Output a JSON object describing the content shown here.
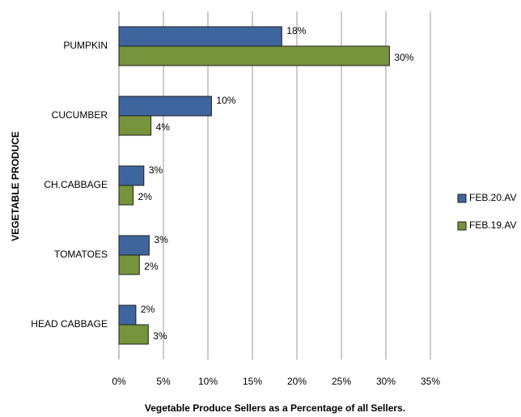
{
  "chart_data": {
    "type": "hbar",
    "xlabel": "Vegetable Produce Sellers as a Percentage of all Sellers.",
    "ylabel": "VEGETABLE PRODUCE",
    "categories": [
      "PUMPKIN",
      "CUCUMBER",
      "CH.CABBAGE",
      "TOMATOES",
      "HEAD CABBAGE"
    ],
    "series": [
      {
        "name": "FEB.20.AV",
        "color": "#3e659e",
        "values": [
          18.3,
          10.4,
          2.8,
          3.4,
          1.9
        ],
        "value_labels": [
          "18%",
          "10%",
          "3%",
          "3%",
          "2%"
        ]
      },
      {
        "name": "FEB.19.AV",
        "color": "#77933c",
        "values": [
          30.4,
          3.6,
          1.6,
          2.3,
          3.3
        ],
        "value_labels": [
          "30%",
          "4%",
          "2%",
          "2%",
          "3%"
        ]
      }
    ],
    "xlim": [
      0,
      35
    ],
    "xticks": [
      {
        "value": 0,
        "label": "0%"
      },
      {
        "value": 5,
        "label": "5%"
      },
      {
        "value": 10,
        "label": "10%"
      },
      {
        "value": 15,
        "label": "15%"
      },
      {
        "value": 20,
        "label": "20%"
      },
      {
        "value": 25,
        "label": "25%"
      },
      {
        "value": 30,
        "label": "30%"
      },
      {
        "value": 35,
        "label": "35%"
      }
    ],
    "grid": true,
    "legend": "right"
  }
}
